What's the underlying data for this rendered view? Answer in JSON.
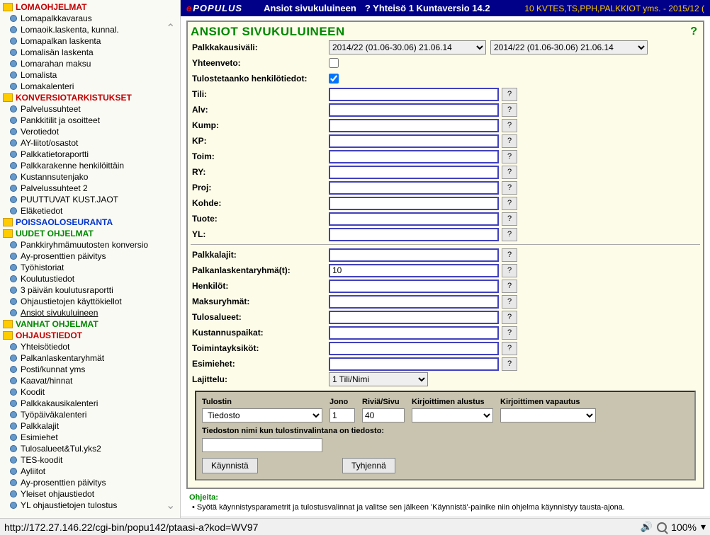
{
  "sidebar": {
    "sections": [
      {
        "type": "folder",
        "label": "LOMAOHJELMAT",
        "color": "red"
      },
      {
        "type": "leaf",
        "label": "Lomapalkkavaraus"
      },
      {
        "type": "leaf",
        "label": "Lomaoik.laskenta, kunnal."
      },
      {
        "type": "leaf",
        "label": "Lomapalkan laskenta"
      },
      {
        "type": "leaf",
        "label": "Lomalisän laskenta"
      },
      {
        "type": "leaf",
        "label": "Lomarahan maksu"
      },
      {
        "type": "leaf",
        "label": "Lomalista"
      },
      {
        "type": "leaf",
        "label": "Lomakalenteri"
      },
      {
        "type": "folder",
        "label": "KONVERSIOTARKISTUKSET",
        "color": "red"
      },
      {
        "type": "leaf",
        "label": "Palvelussuhteet"
      },
      {
        "type": "leaf",
        "label": "Pankkitilit ja osoitteet"
      },
      {
        "type": "leaf",
        "label": "Verotiedot"
      },
      {
        "type": "leaf",
        "label": "AY-liitot/osastot"
      },
      {
        "type": "leaf",
        "label": "Palkkatietoraportti"
      },
      {
        "type": "leaf",
        "label": "Palkkarakenne henkilöittäin"
      },
      {
        "type": "leaf",
        "label": "Kustannsutenjako"
      },
      {
        "type": "leaf",
        "label": "Palvelussuhteet 2"
      },
      {
        "type": "leaf",
        "label": "PUUTTUVAT KUST.JAOT"
      },
      {
        "type": "leaf",
        "label": "Eläketiedot"
      },
      {
        "type": "folder",
        "label": "POISSAOLOSEURANTA",
        "color": "blue"
      },
      {
        "type": "folder",
        "label": "UUDET OHJELMAT",
        "color": "green"
      },
      {
        "type": "leaf",
        "label": "Pankkiryhmämuutosten konversio"
      },
      {
        "type": "leaf",
        "label": "Ay-prosenttien päivitys"
      },
      {
        "type": "leaf",
        "label": "Työhistoriat"
      },
      {
        "type": "leaf",
        "label": "Koulutustiedot"
      },
      {
        "type": "leaf",
        "label": "3 päivän koulutusraportti"
      },
      {
        "type": "leaf",
        "label": "Ohjaustietojen käyttökiellot"
      },
      {
        "type": "leaf",
        "label": "Ansiot sivukuluineen",
        "underline": true
      },
      {
        "type": "folder",
        "label": "VANHAT OHJELMAT",
        "color": "green"
      },
      {
        "type": "folder",
        "label": "OHJAUSTIEDOT",
        "color": "red"
      },
      {
        "type": "leaf",
        "label": "Yhteisötiedot"
      },
      {
        "type": "leaf",
        "label": "Palkanlaskentaryhmät"
      },
      {
        "type": "leaf",
        "label": "Posti/kunnat yms"
      },
      {
        "type": "leaf",
        "label": "Kaavat/hinnat"
      },
      {
        "type": "leaf",
        "label": "Koodit"
      },
      {
        "type": "leaf",
        "label": "Palkkakausikalenteri"
      },
      {
        "type": "leaf",
        "label": "Työpäiväkalenteri"
      },
      {
        "type": "leaf",
        "label": "Palkkalajit"
      },
      {
        "type": "leaf",
        "label": "Esimiehet"
      },
      {
        "type": "leaf",
        "label": "Tulosalueet&Tul.yks2"
      },
      {
        "type": "leaf",
        "label": "TES-koodit"
      },
      {
        "type": "leaf",
        "label": "Ayliitot"
      },
      {
        "type": "leaf",
        "label": "Ay-prosenttien päivitys"
      },
      {
        "type": "leaf",
        "label": "Yleiset ohjaustiedot"
      },
      {
        "type": "leaf",
        "label": "YL ohjaustietojen tulostus"
      }
    ]
  },
  "topbar": {
    "logo_e": "e",
    "logo_p": "POPULUS",
    "title": "Ansiot sivukuluineen",
    "info": "?  Yhteisö 1 Kuntaversio 14.2",
    "right": "10 KVTES,TS,PPH,PALKKIOT yms. - 2015/12 ("
  },
  "form": {
    "title": "ANSIOT SIVUKULUINEEN",
    "help": "?",
    "period_label": "Palkkakausiväli:",
    "period_from": "2014/22 (01.06-30.06) 21.06.14",
    "period_to": "2014/22 (01.06-30.06) 21.06.14",
    "summary_label": "Yhteenveto:",
    "print_person_label": "Tulostetaanko henkilötiedot:",
    "rows1": [
      {
        "key": "tili",
        "label": "Tili:"
      },
      {
        "key": "alv",
        "label": "Alv:"
      },
      {
        "key": "kump",
        "label": "Kump:"
      },
      {
        "key": "kp",
        "label": "KP:"
      },
      {
        "key": "toim",
        "label": "Toim:"
      },
      {
        "key": "ry",
        "label": "RY:"
      },
      {
        "key": "proj",
        "label": "Proj:"
      },
      {
        "key": "kohde",
        "label": "Kohde:"
      },
      {
        "key": "tuote",
        "label": "Tuote:"
      },
      {
        "key": "yl",
        "label": "YL:"
      }
    ],
    "rows2": [
      {
        "key": "palkkalajit",
        "label": "Palkkalajit:",
        "value": ""
      },
      {
        "key": "palkanlaskentaryhmat",
        "label": "Palkanlaskentaryhmä(t):",
        "value": "10"
      },
      {
        "key": "henkilot",
        "label": "Henkilöt:",
        "value": ""
      },
      {
        "key": "maksuryhmat",
        "label": "Maksuryhmät:",
        "value": ""
      },
      {
        "key": "tulosalueet",
        "label": "Tulosalueet:",
        "value": ""
      },
      {
        "key": "kustannuspaikat",
        "label": "Kustannuspaikat:",
        "value": ""
      },
      {
        "key": "toimintayksikot",
        "label": "Toimintayksiköt:",
        "value": ""
      },
      {
        "key": "esimiehet",
        "label": "Esimiehet:",
        "value": ""
      }
    ],
    "sort_label": "Lajittelu:",
    "sort_value": "1 Tili/Nimi"
  },
  "print": {
    "h_printer": "Tulostin",
    "h_queue": "Jono",
    "h_rows": "Riviä/Sivu",
    "h_init": "Kirjoittimen alustus",
    "h_release": "Kirjoittimen vapautus",
    "printer_value": "Tiedosto",
    "queue_value": "1",
    "rows_value": "40",
    "filename_label": "Tiedoston nimi kun tulostinvalintana on tiedosto:",
    "btn_start": "Käynnistä",
    "btn_clear": "Tyhjennä"
  },
  "hints": {
    "title": "Ohjeita:",
    "line1": "•  Syötä käynnistysparametrit ja tulostusvalinnat ja valitse sen jälkeen 'Käynnistä'-painike niin ohjelma käynnistyy tausta-ajona."
  },
  "status": {
    "url": "http://172.27.146.22/cgi-bin/popu142/ptaasi-a?kod=WV97",
    "zoom": "100%"
  }
}
